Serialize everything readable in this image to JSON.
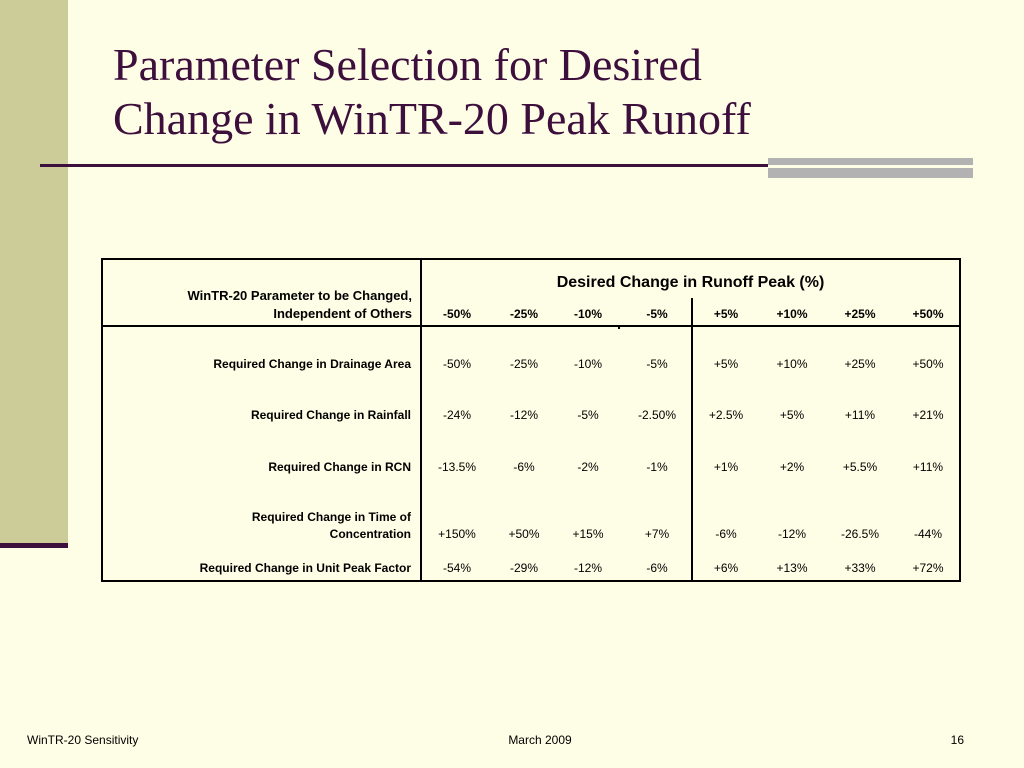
{
  "slide": {
    "title_line1": "Parameter Selection for Desired",
    "title_line2": "Change in WinTR-20 Peak Runoff"
  },
  "table": {
    "param_header_line1": "WinTR-20 Parameter to be Changed,",
    "param_header_line2": "Independent of Others",
    "desired_header": "Desired Change in Runoff Peak (%)",
    "columns": [
      "-50%",
      "-25%",
      "-10%",
      "-5%",
      "+5%",
      "+10%",
      "+25%",
      "+50%"
    ],
    "rows": [
      {
        "label": "Required Change in Drainage Area",
        "values": [
          "-50%",
          "-25%",
          "-10%",
          "-5%",
          "+5%",
          "+10%",
          "+25%",
          "+50%"
        ]
      },
      {
        "label": "Required Change in Rainfall",
        "values": [
          "-24%",
          "-12%",
          "-5%",
          "-2.50%",
          "+2.5%",
          "+5%",
          "+11%",
          "+21%"
        ]
      },
      {
        "label": "Required Change in RCN",
        "values": [
          "-13.5%",
          "-6%",
          "-2%",
          "-1%",
          "+1%",
          "+2%",
          "+5.5%",
          "+11%"
        ]
      },
      {
        "label_line1": "Required Change in Time of",
        "label_line2": "Concentration",
        "values": [
          "+150%",
          "+50%",
          "+15%",
          "+7%",
          "-6%",
          "-12%",
          "-26.5%",
          "-44%"
        ]
      },
      {
        "label": "Required Change in Unit Peak Factor",
        "values": [
          "-54%",
          "-29%",
          "-12%",
          "-6%",
          "+6%",
          "+13%",
          "+33%",
          "+72%"
        ]
      }
    ]
  },
  "footer": {
    "left": "WinTR-20 Sensitivity",
    "center": "March 2009",
    "right": "16"
  }
}
